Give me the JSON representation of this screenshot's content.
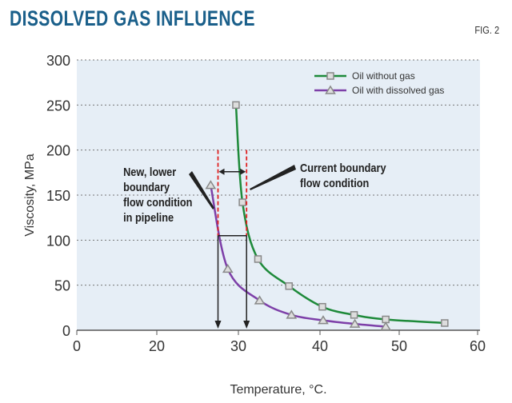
{
  "chart_data": {
    "type": "line",
    "title": "DISSOLVED GAS INFLUENCE",
    "figure_label": "FIG. 2",
    "xlabel": "Temperature, °C.",
    "ylabel": "Viscosity, MPa",
    "xticks": [
      0,
      20,
      30,
      40,
      50,
      60
    ],
    "yticks": [
      0,
      50,
      100,
      150,
      200,
      250,
      300
    ],
    "ylim": [
      0,
      300
    ],
    "grid": "horizontal dotted",
    "legend_position": "top-right",
    "background_color": "#e6eef6",
    "series": [
      {
        "name": "Oil without gas",
        "color": "#1e8a3a",
        "marker": "square",
        "x": [
          29.7,
          30.5,
          32.4,
          36.2,
          40.3,
          44.3,
          48.3,
          55.8
        ],
        "y": [
          250,
          142,
          79,
          49,
          26,
          17,
          12,
          8
        ]
      },
      {
        "name": "Oil with dissolved gas",
        "color": "#7d3fa8",
        "marker": "triangle",
        "x": [
          26.6,
          28.7,
          32.6,
          36.5,
          40.4,
          44.4,
          48.3
        ],
        "y": [
          161,
          68,
          33,
          17,
          11,
          7,
          4
        ]
      }
    ],
    "annotations": [
      {
        "text_lines": [
          "New, lower",
          "boundary",
          "flow condition",
          "in pipeline"
        ],
        "boundary_temperature": 27.5
      },
      {
        "text_lines": [
          "Current boundary",
          "flow condition"
        ],
        "boundary_temperature": 31
      }
    ],
    "boundary_viscosity": 105
  }
}
